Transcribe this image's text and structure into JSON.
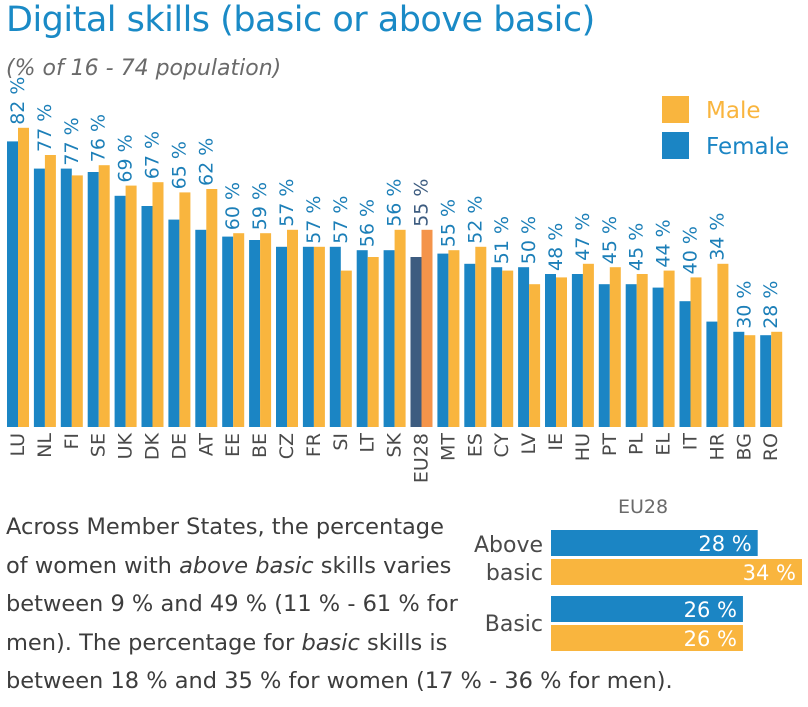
{
  "title": "Digital skills (basic or above basic)",
  "subtitle": "(% of 16 - 74 population)",
  "colors": {
    "female": "#1b85c4",
    "male": "#f9b53e",
    "eu_female": "#3d5c80",
    "eu_male": "#f4944a",
    "label": "#1c7fb8",
    "eu_label": "#3d5c80",
    "axis_label": "#4a4a4a"
  },
  "chart_data": [
    {
      "type": "bar",
      "title": "Digital skills (basic or above basic)",
      "subtitle": "(% of 16 - 74 population)",
      "categories": [
        "LU",
        "NL",
        "FI",
        "SE",
        "UK",
        "DK",
        "DE",
        "AT",
        "EE",
        "BE",
        "CZ",
        "FR",
        "SI",
        "LT",
        "SK",
        "EU28",
        "MT",
        "ES",
        "CY",
        "LV",
        "IE",
        "HU",
        "PT",
        "PL",
        "EL",
        "IT",
        "HR",
        "BG",
        "RO"
      ],
      "totals": [
        "82 %",
        "77 %",
        "77 %",
        "76 %",
        "69 %",
        "67 %",
        "65 %",
        "62 %",
        "60 %",
        "59 %",
        "57 %",
        "57 %",
        "57 %",
        "56 %",
        "56 %",
        "55 %",
        "55 %",
        "52 %",
        "51 %",
        "50 %",
        "48 %",
        "47 %",
        "45 %",
        "45 %",
        "44 %",
        "40 %",
        "34 %",
        "30 %",
        "28 %"
      ],
      "series": [
        {
          "name": "Female",
          "values": [
            84,
            76,
            76,
            75,
            68,
            65,
            61,
            58,
            56,
            55,
            53,
            53,
            53,
            52,
            52,
            50,
            51,
            48,
            47,
            47,
            45,
            45,
            42,
            42,
            41,
            37,
            31,
            28,
            27
          ]
        },
        {
          "name": "Male",
          "values": [
            88,
            80,
            74,
            77,
            71,
            72,
            69,
            70,
            57,
            57,
            58,
            53,
            46,
            50,
            58,
            58,
            52,
            53,
            46,
            42,
            44,
            48,
            47,
            45,
            46,
            44,
            48,
            27,
            28
          ]
        }
      ],
      "ylim": [
        0,
        100
      ],
      "legend": "top-right",
      "grid": false
    },
    {
      "type": "bar",
      "title": "EU28",
      "orientation": "horizontal",
      "categories": [
        "Above basic",
        "Basic"
      ],
      "category_lines": [
        [
          "Above",
          "basic"
        ],
        [
          "Basic"
        ]
      ],
      "series": [
        {
          "name": "Female",
          "values": [
            28,
            26
          ],
          "labels": [
            "28 %",
            "26 %"
          ]
        },
        {
          "name": "Male",
          "values": [
            34,
            26
          ],
          "labels": [
            "34 %",
            "26 %"
          ]
        }
      ],
      "xlim": [
        0,
        34
      ]
    }
  ],
  "caption": {
    "l1": "Across Member States, the percentage",
    "l2_pre": "of women with ",
    "l2_em": "above basic",
    "l2_post": " skills varies",
    "l3": "between 9 % and 49 % (11 % - 61 % for",
    "l4_pre": "men). The percentage for ",
    "l4_em": "basic",
    "l4_post": " skills is",
    "l5": "between 18 % and 35 % for women (17 % - 36 % for men)."
  }
}
